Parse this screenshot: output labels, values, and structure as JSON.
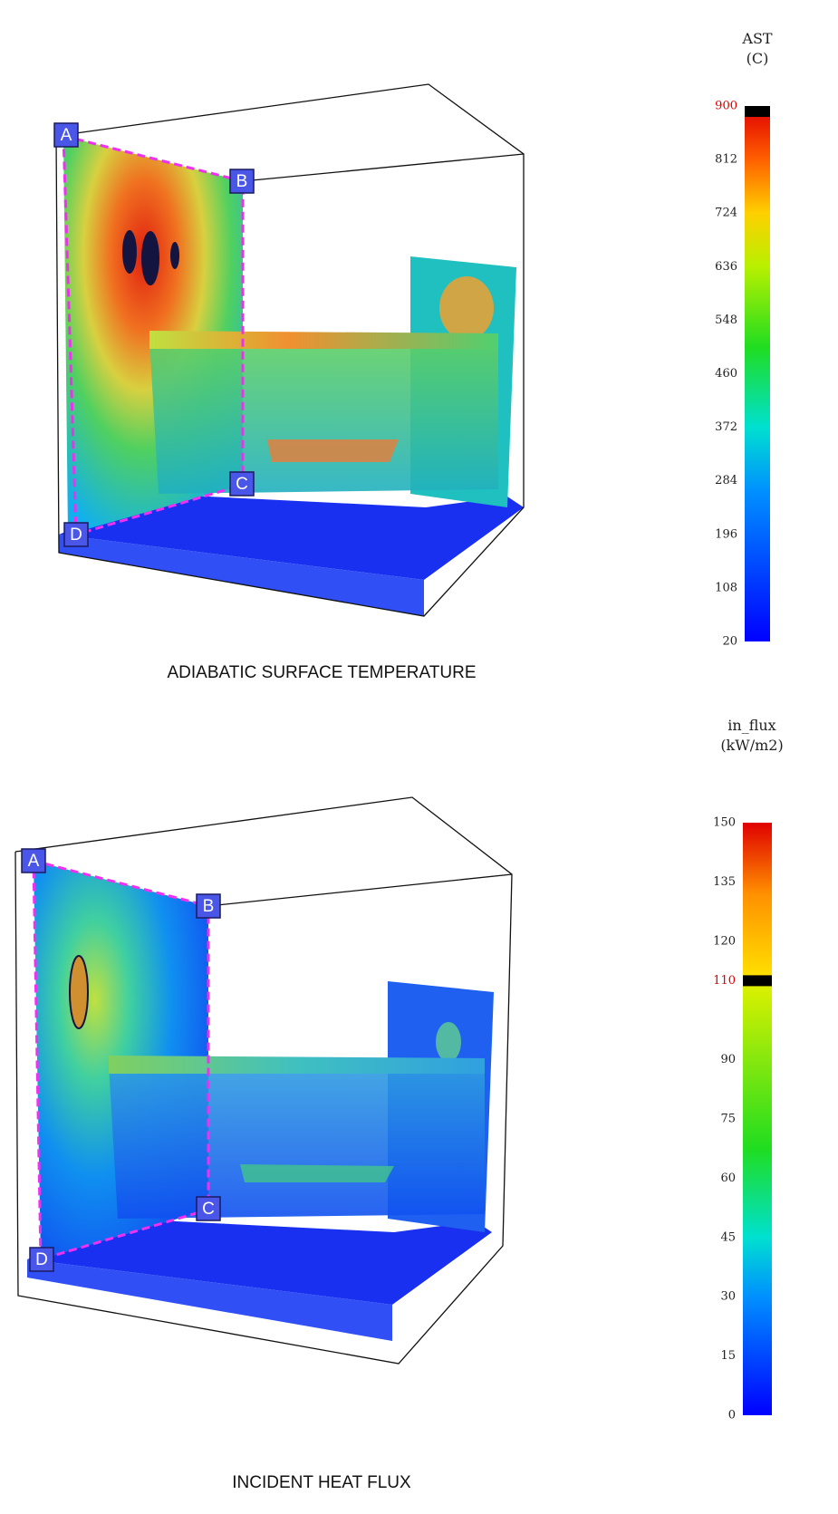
{
  "panels": [
    {
      "caption": "ADIABATIC SURFACE TEMPERATURE",
      "colorbar": {
        "title": "AST",
        "unit": "(C)",
        "ticks": [
          20,
          108,
          196,
          284,
          372,
          460,
          548,
          636,
          724,
          812,
          900
        ],
        "threshold": 900
      },
      "points": [
        "A",
        "B",
        "C",
        "D"
      ]
    },
    {
      "caption": "INCIDENT HEAT FLUX",
      "colorbar": {
        "title": "in_flux",
        "unit": "(kW/m2)",
        "ticks": [
          0,
          15,
          30,
          45,
          60,
          75,
          90,
          110,
          120,
          135,
          150
        ],
        "threshold": 110
      },
      "points": [
        "A",
        "B",
        "C",
        "D"
      ]
    }
  ]
}
